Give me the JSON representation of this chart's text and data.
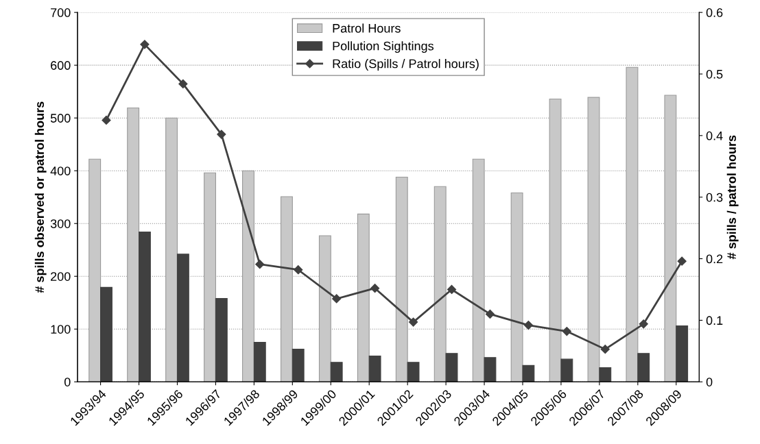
{
  "chart_data": {
    "type": "bar",
    "categories": [
      "1993/94",
      "1994/95",
      "1995/96",
      "1996/97",
      "1997/98",
      "1998/99",
      "1999/00",
      "2000/01",
      "2001/02",
      "2002/03",
      "2003/04",
      "2004/05",
      "2005/06",
      "2006/07",
      "2007/08",
      "2008/09"
    ],
    "series": [
      {
        "name": "Patrol Hours",
        "color": "#c8c8c8",
        "values": [
          422,
          519,
          500,
          396,
          400,
          351,
          277,
          318,
          388,
          370,
          422,
          358,
          536,
          539,
          596,
          543
        ]
      },
      {
        "name": "Pollution Sightings",
        "color": "#404040",
        "values": [
          179,
          284,
          242,
          158,
          75,
          62,
          37,
          49,
          37,
          54,
          46,
          31,
          43,
          27,
          54,
          106
        ]
      },
      {
        "name": "Ratio (Spills / Patrol hours)",
        "color": "#404040",
        "type": "line",
        "axis": "y2",
        "marker": "diamond",
        "values": [
          0.425,
          0.548,
          0.484,
          0.402,
          0.191,
          0.182,
          0.135,
          0.152,
          0.097,
          0.15,
          0.11,
          0.092,
          0.082,
          0.053,
          0.094,
          0.196
        ]
      }
    ],
    "ylabel": "# spills observed or patrol hours",
    "y2label": "# spills / patrol hours",
    "ylim": [
      0,
      700
    ],
    "yticks": [
      0,
      100,
      200,
      300,
      400,
      500,
      600,
      700
    ],
    "y2lim": [
      0,
      0.6
    ],
    "y2ticks": [
      0,
      0.1,
      0.2,
      0.3,
      0.4,
      0.5,
      0.6
    ],
    "grid": "y",
    "legend": "top"
  }
}
